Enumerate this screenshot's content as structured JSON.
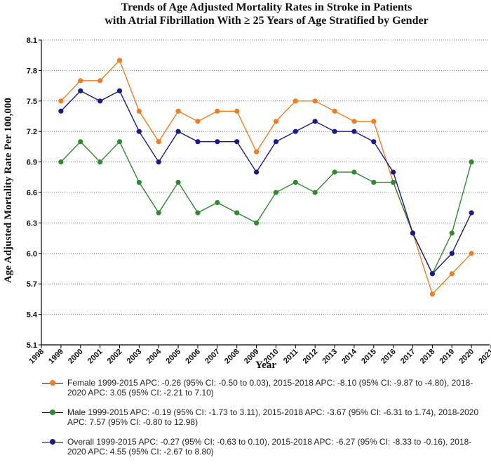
{
  "chart_data": {
    "type": "line",
    "title": "Trends of Age Adjusted Mortality Rates in Stroke in Patients",
    "subtitle": "with Atrial Fibrillation With ≥ 25 Years of Age Stratified by Gender",
    "xlabel": "Year",
    "ylabel": "Age Adjusted Mortality Rate Per 100,000",
    "xlim": [
      1998,
      2021
    ],
    "ylim": [
      5.1,
      8.1
    ],
    "x_ticks": [
      "1998",
      "1999",
      "2000",
      "2001",
      "2002",
      "2003",
      "2004",
      "2005",
      "2006",
      "2007",
      "2008",
      "2009",
      "2010",
      "2011",
      "2012",
      "2013",
      "2014",
      "2015",
      "2016",
      "2017",
      "2018",
      "2019",
      "2020",
      "2021"
    ],
    "y_ticks": [
      "5.1",
      "5.4",
      "5.7",
      "6.0",
      "6.3",
      "6.6",
      "6.9",
      "7.2",
      "7.5",
      "7.8",
      "8.1"
    ],
    "grid": "horizontal dotted",
    "legend_position": "bottom",
    "x": [
      1999,
      2000,
      2001,
      2002,
      2003,
      2004,
      2005,
      2006,
      2007,
      2008,
      2009,
      2010,
      2011,
      2012,
      2013,
      2014,
      2015,
      2016,
      2017,
      2018,
      2019,
      2020
    ],
    "series": [
      {
        "name": "Female",
        "color": "#f47c20",
        "legend": "Female 1999-2015 APC: -0.26 (95% CI: -0.50 to 0.03), 2015-2018 APC: -8.10 (95% CI: -9.87 to -4.80), 2018-2020 APC: 3.05 (95% CI: -2.21 to 7.10)",
        "values": [
          7.5,
          7.7,
          7.7,
          7.9,
          7.4,
          7.1,
          7.4,
          7.3,
          7.4,
          7.4,
          7.0,
          7.3,
          7.5,
          7.5,
          7.4,
          7.3,
          7.3,
          6.7,
          6.2,
          5.6,
          5.8,
          6.0
        ]
      },
      {
        "name": "Male",
        "color": "#2e8b2e",
        "legend": "Male 1999-2015 APC: -0.19 (95% CI: -1.73 to 3.11), 2015-2018 APC: -3.67 (95% CI: -6.31 to 1.74), 2018-2020 APC: 7.57 (95% CI: -0.80 to 12.98)",
        "values": [
          6.9,
          7.1,
          6.9,
          7.1,
          6.7,
          6.4,
          6.7,
          6.4,
          6.5,
          6.4,
          6.3,
          6.6,
          6.7,
          6.6,
          6.8,
          6.8,
          6.7,
          6.7,
          6.2,
          5.8,
          6.2,
          6.9
        ]
      },
      {
        "name": "Overall",
        "color": "#1a1a8c",
        "legend": "Overall 1999-2015 APC: -0.27 (95% CI: -0.63 to 0.10), 2015-2018 APC: -6.27 (95% CI: -8.33 to -0.16), 2018-2020 APC: 4.55 (95% CI: -2.67 to 8.80)",
        "values": [
          7.4,
          7.6,
          7.5,
          7.6,
          7.2,
          6.9,
          7.2,
          7.1,
          7.1,
          7.1,
          6.8,
          7.1,
          7.2,
          7.3,
          7.2,
          7.2,
          7.1,
          6.8,
          6.2,
          5.8,
          6.0,
          6.4
        ]
      }
    ]
  }
}
